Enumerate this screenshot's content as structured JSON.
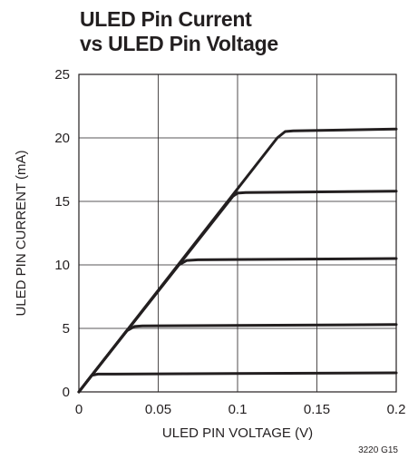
{
  "chart_data": {
    "type": "line",
    "title_lines": [
      "ULED Pin Current",
      "vs ULED Pin Voltage"
    ],
    "xlabel": "ULED PIN VOLTAGE (V)",
    "ylabel": "ULED PIN CURRENT (mA)",
    "xlim": [
      0,
      0.2
    ],
    "ylim": [
      0,
      25
    ],
    "x_ticks": [
      0,
      0.05,
      0.1,
      0.15,
      0.2
    ],
    "x_tick_labels": [
      "0",
      "0.05",
      "0.1",
      "0.15",
      "0.2"
    ],
    "y_ticks": [
      0,
      5,
      10,
      15,
      20,
      25
    ],
    "y_tick_labels": [
      "0",
      "5",
      "10",
      "15",
      "20",
      "25"
    ],
    "grid": true,
    "line_color": "#231f20",
    "series": [
      {
        "points": [
          [
            0,
            0
          ],
          [
            0.008,
            1.3
          ],
          [
            0.012,
            1.4
          ],
          [
            0.2,
            1.5
          ]
        ]
      },
      {
        "points": [
          [
            0,
            0
          ],
          [
            0.03,
            4.8
          ],
          [
            0.035,
            5.15
          ],
          [
            0.04,
            5.2
          ],
          [
            0.2,
            5.3
          ]
        ]
      },
      {
        "points": [
          [
            0,
            0
          ],
          [
            0.01,
            1.6
          ],
          [
            0.063,
            10.0
          ],
          [
            0.068,
            10.35
          ],
          [
            0.075,
            10.4
          ],
          [
            0.2,
            10.5
          ]
        ]
      },
      {
        "points": [
          [
            0,
            0
          ],
          [
            0.01,
            1.6
          ],
          [
            0.097,
            15.4
          ],
          [
            0.1,
            15.65
          ],
          [
            0.105,
            15.7
          ],
          [
            0.2,
            15.8
          ]
        ]
      },
      {
        "points": [
          [
            0,
            0
          ],
          [
            0.01,
            1.6
          ],
          [
            0.125,
            20.0
          ],
          [
            0.13,
            20.5
          ],
          [
            0.135,
            20.55
          ],
          [
            0.2,
            20.7
          ]
        ]
      }
    ],
    "figure_id": "3220 G15"
  }
}
